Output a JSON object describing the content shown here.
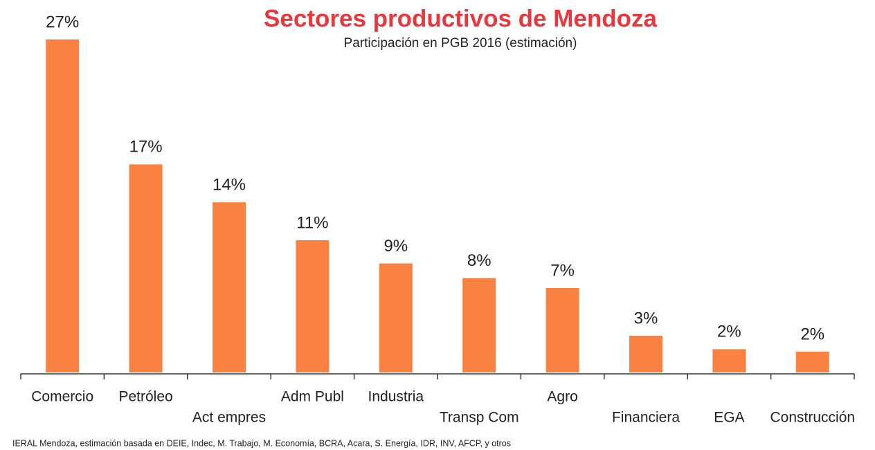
{
  "chart_data": {
    "type": "bar",
    "title": "Sectores productivos de Mendoza",
    "subtitle": "Participación en PGB 2016 (estimación)",
    "source": "IERAL Mendoza, estimación basada en DEIE, Indec, M. Trabajo, M. Economía, BCRA, Acara, S. Energía, IDR, INV, AFCP, y otros",
    "categories": [
      "Comercio",
      "Petróleo",
      "Act empres",
      "Adm Publ",
      "Industria",
      "Transp Com",
      "Agro",
      "Financiera",
      "EGA",
      "Construcción"
    ],
    "values": [
      27.2,
      17.0,
      13.9,
      10.8,
      8.9,
      7.7,
      6.9,
      3.0,
      1.9,
      1.7
    ],
    "value_labels": [
      "27%",
      "17%",
      "14%",
      "11%",
      "9%",
      "8%",
      "7%",
      "3%",
      "2%",
      "2%"
    ],
    "color": "#f98141"
  }
}
